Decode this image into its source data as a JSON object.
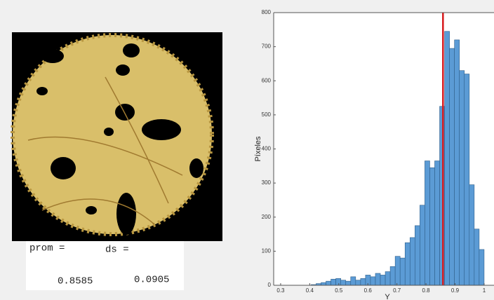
{
  "results": {
    "mean_label": "prom =",
    "mean_value": "0.8585",
    "sd_label": "ds =",
    "sd_value": "0.0905"
  },
  "chart_data": {
    "type": "histogram",
    "xlabel": "Y",
    "ylabel": "Píxeles",
    "color": "#5b9bd5",
    "bins": [
      0.405,
      0.422,
      0.439,
      0.456,
      0.473,
      0.49,
      0.507,
      0.524,
      0.541,
      0.558,
      0.575,
      0.592,
      0.609,
      0.626,
      0.643,
      0.66,
      0.677,
      0.694,
      0.711,
      0.728,
      0.745,
      0.762,
      0.779,
      0.796,
      0.813,
      0.83,
      0.847,
      0.864,
      0.881,
      0.898,
      0.915,
      0.932,
      0.949,
      0.966,
      0.983,
      1.0
    ],
    "values": [
      2,
      5,
      8,
      12,
      18,
      20,
      15,
      12,
      25,
      15,
      20,
      30,
      25,
      35,
      30,
      40,
      55,
      85,
      80,
      125,
      140,
      175,
      235,
      365,
      345,
      365,
      525,
      745,
      695,
      720,
      630,
      620,
      295,
      165,
      105
    ],
    "xlim": [
      0.276,
      1.034
    ],
    "ylim": [
      0,
      800
    ],
    "xticks": [
      0.3,
      0.4,
      0.5,
      0.6,
      0.7,
      0.8,
      0.9,
      1
    ],
    "yticks": [
      0,
      100,
      200,
      300,
      400,
      500,
      600,
      700,
      800
    ],
    "line_color": "#d7191c"
  }
}
